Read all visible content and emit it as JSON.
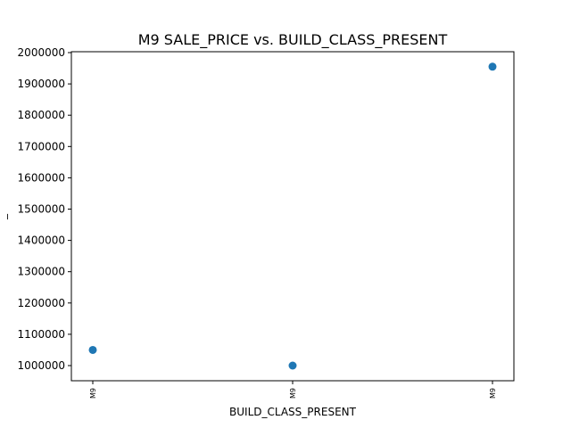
{
  "chart_data": {
    "type": "scatter",
    "title": "M9 SALE_PRICE vs. BUILD_CLASS_PRESENT",
    "xlabel": "BUILD_CLASS_PRESENT",
    "ylabel": "_",
    "x": [
      "M9",
      "M9",
      "M9"
    ],
    "y": [
      1050000,
      1000000,
      1955000
    ],
    "ylim": [
      1000000,
      2000000
    ],
    "yticks": [
      1000000,
      1100000,
      1200000,
      1300000,
      1400000,
      1500000,
      1600000,
      1700000,
      1800000,
      1900000,
      2000000
    ],
    "xtick_labels": [
      "M9",
      "M9",
      "M9"
    ],
    "marker_color": "#1f77b4",
    "grid": false
  }
}
